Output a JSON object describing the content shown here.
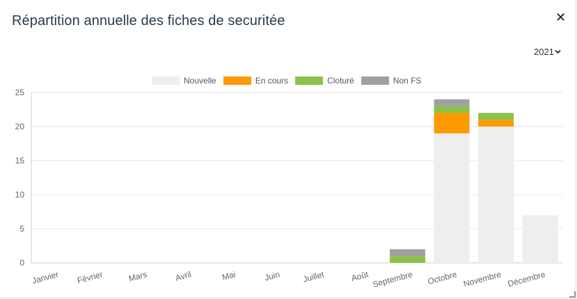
{
  "header": {
    "title": "Répartition annuelle des fiches de securitée",
    "close_label": "✕"
  },
  "year_select": {
    "value": "2021"
  },
  "colors": {
    "Nouvelle": "#eeeeee",
    "En cours": "#ff9900",
    "Cloturé": "#8bc34a",
    "Non FS": "#a0a0a0"
  },
  "chart_data": {
    "type": "bar",
    "stacked": true,
    "categories": [
      "Janvier",
      "Février",
      "Mars",
      "Avril",
      "Mai",
      "Juin",
      "Juillet",
      "Août",
      "Septembre",
      "Octobre",
      "Novembre",
      "Décembre"
    ],
    "series": [
      {
        "name": "Nouvelle",
        "values": [
          0,
          0,
          0,
          0,
          0,
          0,
          0,
          0,
          0,
          19,
          20,
          7
        ]
      },
      {
        "name": "En cours",
        "values": [
          0,
          0,
          0,
          0,
          0,
          0,
          0,
          0,
          0,
          3,
          1,
          0
        ]
      },
      {
        "name": "Cloturé",
        "values": [
          0,
          0,
          0,
          0,
          0,
          0,
          0,
          0,
          1,
          1,
          1,
          0
        ]
      },
      {
        "name": "Non FS",
        "values": [
          0,
          0,
          0,
          0,
          0,
          0,
          0,
          0,
          1,
          1,
          0,
          0
        ]
      }
    ],
    "ylim": [
      0,
      25
    ],
    "yticks": [
      0,
      5,
      10,
      15,
      20,
      25
    ],
    "grid": true,
    "legend": "top-center"
  }
}
